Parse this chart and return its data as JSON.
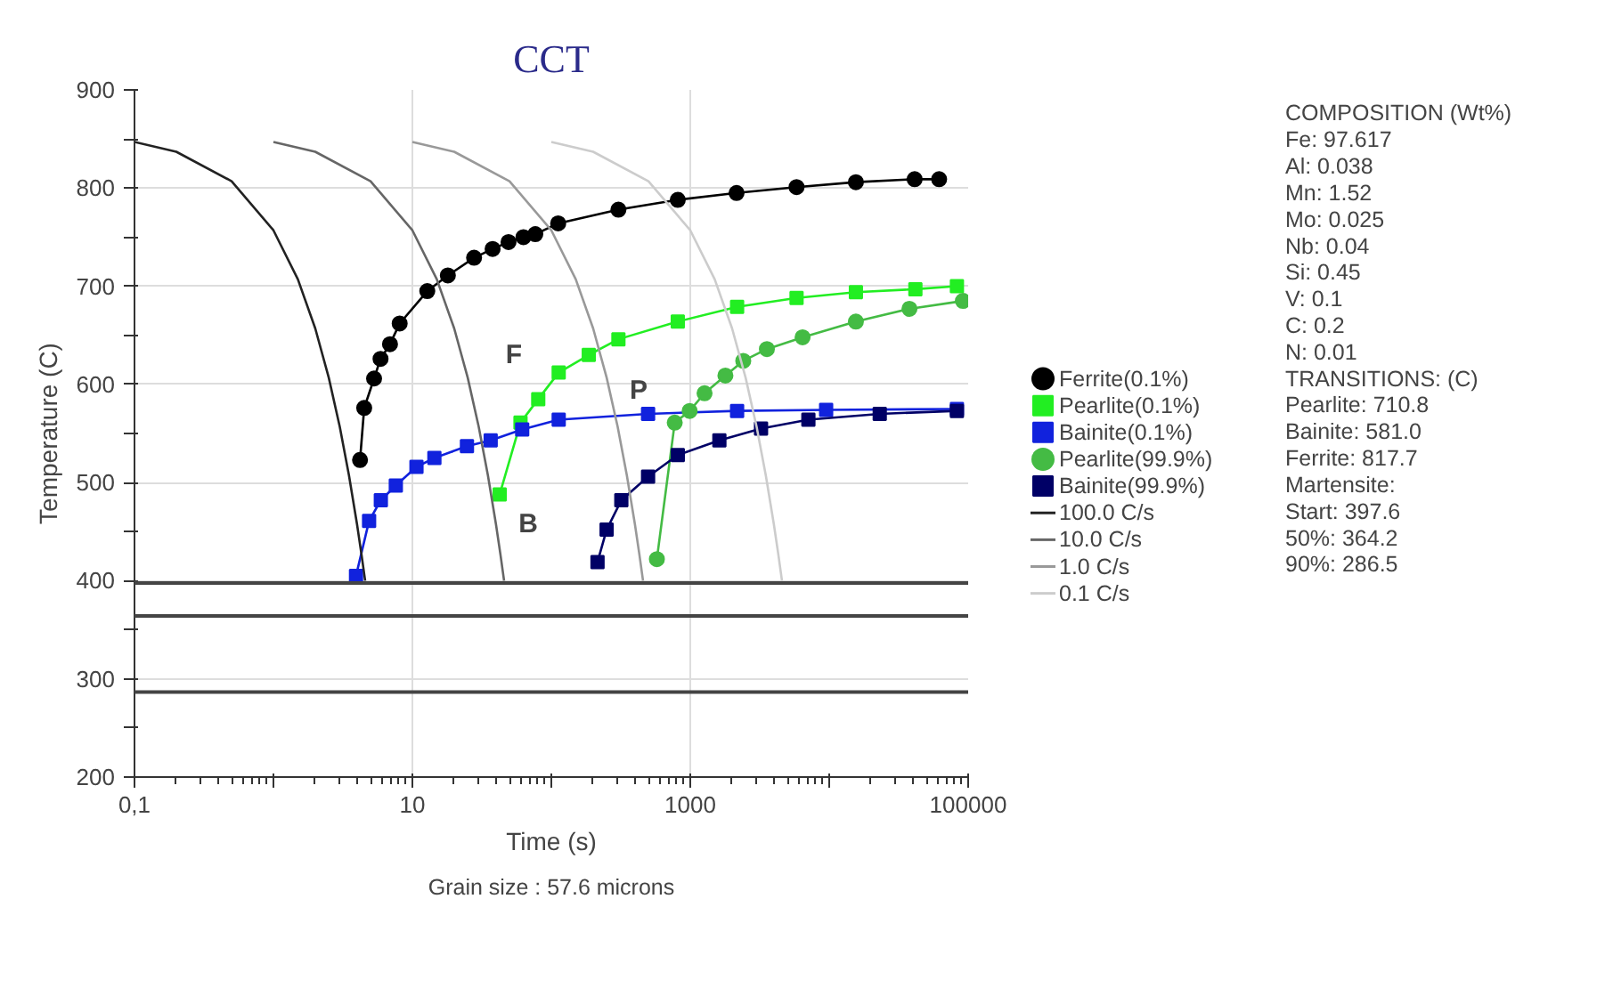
{
  "chart_data": {
    "type": "line",
    "title": "CCT",
    "xlabel": "Time (s)",
    "ylabel": "Temperature (C)",
    "log": "x",
    "xlim": [
      0.1,
      100000
    ],
    "ylim": [
      200,
      900
    ],
    "xticks": [
      {
        "value": 0.1,
        "label": "0,1"
      },
      {
        "value": 1,
        "label": null
      },
      10,
      {
        "value": 100,
        "label": null
      },
      1000,
      {
        "value": 10000,
        "label": null
      },
      100000
    ],
    "yticks": [
      200,
      {
        "value": 250,
        "label": null
      },
      300,
      {
        "value": 350,
        "label": null
      },
      400,
      {
        "value": 450,
        "label": null
      },
      500,
      {
        "value": 550,
        "label": null
      },
      600,
      {
        "value": 650,
        "label": null
      },
      700,
      {
        "value": 750,
        "label": null
      },
      800,
      {
        "value": 850,
        "label": null
      },
      900
    ],
    "grid": true,
    "legend": "right",
    "series": [
      {
        "name": "Ferrite(0.1%)",
        "marker": "circle",
        "color": "#000000",
        "x": [
          4.2,
          4.5,
          5.3,
          5.9,
          6.9,
          8.1,
          12.8,
          18.0,
          27.8,
          37.8,
          49.2,
          63,
          76.7,
          112,
          304,
          813,
          2153,
          5820,
          15560,
          41200,
          61800
        ],
        "values": [
          523,
          576,
          606,
          626,
          641,
          662,
          695,
          711,
          729,
          738,
          745,
          750,
          753,
          764,
          778,
          788,
          795,
          801,
          806,
          809,
          809
        ]
      },
      {
        "name": "Pearlite(0.1%)",
        "marker": "square",
        "color": "#22ee22",
        "x": [
          42.5,
          60,
          80.5,
          113,
          186,
          304,
          813,
          2173,
          5820,
          15560,
          41700,
          83000
        ],
        "values": [
          488,
          561,
          585,
          612,
          630,
          646,
          664,
          679,
          688,
          694,
          697,
          700
        ]
      },
      {
        "name": "Bainite(0.1%)",
        "marker": "square",
        "color": "#1122dd",
        "x": [
          3.93,
          4.88,
          5.93,
          7.6,
          10.7,
          14.4,
          24.7,
          36.6,
          61.7,
          113,
          497,
          2173,
          9500,
          83000
        ],
        "values": [
          405,
          461,
          482,
          497,
          516,
          525,
          537,
          543,
          554,
          564,
          570,
          573,
          574,
          575
        ]
      },
      {
        "name": "Pearlite(99.9%)",
        "marker": "circle",
        "color": "#44bb44",
        "x": [
          575,
          773,
          990,
          1267,
          1790,
          2406,
          3560,
          6430,
          15560,
          37800,
          91600
        ],
        "values": [
          422,
          561,
          573,
          591,
          609,
          624,
          636,
          648,
          664,
          677,
          685
        ]
      },
      {
        "name": "Bainite(99.9%)",
        "marker": "square",
        "color": "#000066",
        "x": [
          215,
          250,
          319,
          497,
          813,
          1620,
          3230,
          7080,
          23100,
          83000
        ],
        "values": [
          419,
          452,
          482,
          506,
          528,
          543,
          555,
          564,
          570,
          573
        ]
      },
      {
        "name": "100.0 C/s",
        "marker": "none",
        "color": "#222222",
        "x": [
          0.1,
          0.2,
          0.5,
          1,
          1.5,
          2,
          2.5,
          3,
          3.5,
          4,
          4.3,
          4.57
        ],
        "values": [
          847,
          837,
          807,
          757,
          707,
          657,
          607,
          557,
          507,
          457,
          427,
          400
        ]
      },
      {
        "name": "10.0 C/s",
        "marker": "none",
        "color": "#666666",
        "x": [
          1,
          2,
          5,
          10,
          15,
          20,
          25,
          30,
          35,
          40,
          43,
          45.7
        ],
        "values": [
          847,
          837,
          807,
          757,
          707,
          657,
          607,
          557,
          507,
          457,
          427,
          400
        ]
      },
      {
        "name": "1.0 C/s",
        "marker": "none",
        "color": "#999999",
        "x": [
          10,
          20,
          50,
          100,
          150,
          200,
          250,
          300,
          350,
          400,
          430,
          457
        ],
        "values": [
          847,
          837,
          807,
          757,
          707,
          657,
          607,
          557,
          507,
          457,
          427,
          400
        ]
      },
      {
        "name": "0.1 C/s",
        "marker": "none",
        "color": "#cccccc",
        "x": [
          100,
          200,
          500,
          1000,
          1500,
          2000,
          2500,
          3000,
          3500,
          4000,
          4300,
          4570
        ],
        "values": [
          847,
          837,
          807,
          757,
          707,
          657,
          607,
          557,
          507,
          457,
          427,
          400
        ]
      }
    ],
    "ref_lines": [
      {
        "axis": "y",
        "value": 397.6,
        "color": "#444444"
      },
      {
        "axis": "y",
        "value": 364.2,
        "color": "#444444"
      },
      {
        "axis": "y",
        "value": 286.5,
        "color": "#444444"
      }
    ],
    "annotations": [
      "F",
      "B",
      "P",
      "COMPOSITION (Wt%)",
      "Fe: 97.617",
      "Al: 0.038",
      "Mn: 1.52",
      "Mo: 0.025",
      "Nb: 0.04",
      "Si: 0.45",
      "V: 0.1",
      "C: 0.2",
      "N: 0.01",
      "TRANSITIONS: (C)",
      "Pearlite: 710.8",
      "Bainite: 581.0",
      "Ferrite: 817.7",
      "Martensite:",
      "  Start: 397.6",
      "  50%:   364.2",
      "  90%:   286.5",
      "Grain size : 57.6 microns"
    ]
  }
}
